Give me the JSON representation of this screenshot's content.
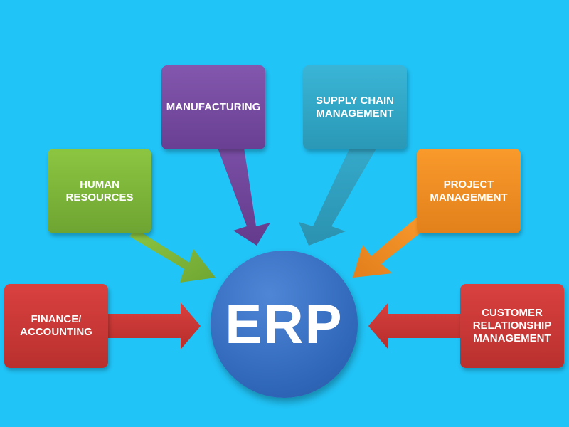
{
  "colors": {
    "background": "#21c4f7",
    "finance": "#c93634",
    "human_resources": "#7fb83a",
    "manufacturing": "#75499f",
    "supply_chain": "#33a8c7",
    "project": "#f28b22",
    "crm": "#c93634",
    "erp_circle": "#3671c4"
  },
  "center": {
    "label": "ERP"
  },
  "modules": {
    "finance": "FINANCE/\nACCOUNTING",
    "human_resources": "HUMAN\nRESOURCES",
    "manufacturing": "MANUFACTURING",
    "supply_chain": "SUPPLY CHAIN\nMANAGEMENT",
    "project": "PROJECT\nMANAGEMENT",
    "crm": "CUSTOMER\nRELATIONSHIP\nMANAGEMENT"
  }
}
